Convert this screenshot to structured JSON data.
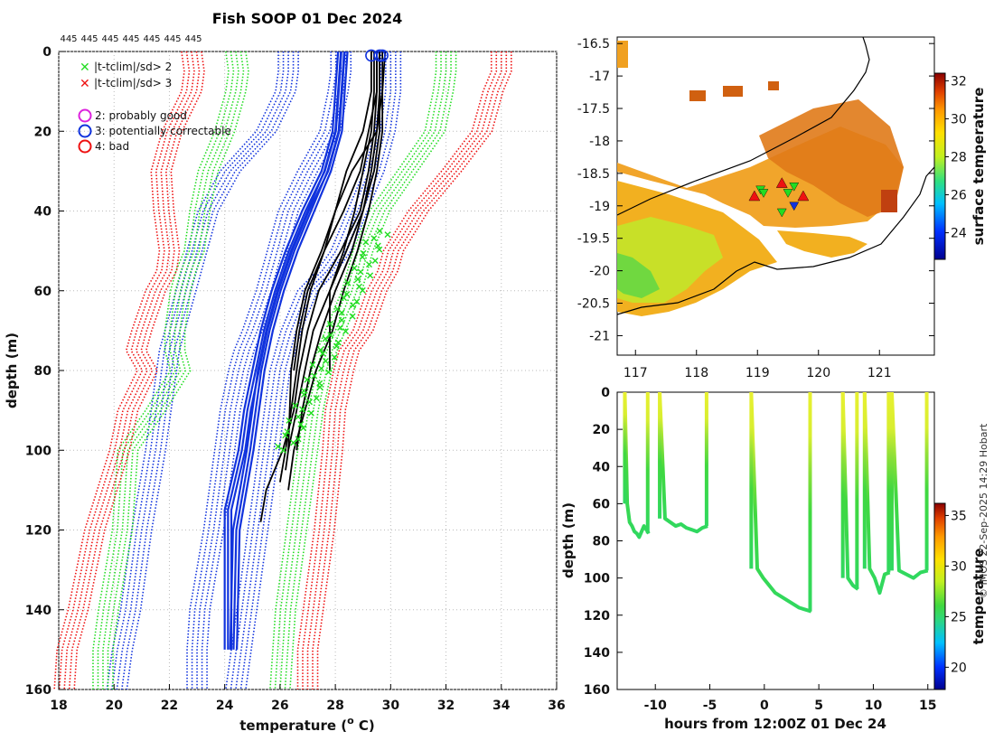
{
  "figure": {
    "title": "Fish SOOP 01 Dec 2024",
    "credit": "© IMOS 22-Sep-2025 14:29 Hobart"
  },
  "chart_data": [
    {
      "type": "line",
      "panel": "profiles",
      "top_labels": [
        "445",
        "445",
        "445",
        "445",
        "445",
        "445",
        "445"
      ],
      "xlabel": "temperature (o C)",
      "xlabel_main": "temperature (",
      "xlabel_sup": "o",
      "xlabel_end": " C)",
      "ylabel": "depth (m)",
      "xlim": [
        18,
        36
      ],
      "ylim": [
        0,
        160
      ],
      "y_reversed": true,
      "xticks": [
        18,
        20,
        22,
        24,
        26,
        28,
        30,
        32,
        34,
        36
      ],
      "yticks": [
        0,
        20,
        40,
        60,
        80,
        100,
        120,
        140,
        160
      ],
      "legend": [
        {
          "marker": "x",
          "color": "#22dd22",
          "label": "|t-tclim|/sd> 2"
        },
        {
          "marker": "x",
          "color": "#ee1111",
          "label": "|t-tclim|/sd> 3"
        },
        {
          "marker": "o",
          "color": "#dd22dd",
          "label": "2: probably good"
        },
        {
          "marker": "o",
          "color": "#1133dd",
          "label": "3: potentially correctable"
        },
        {
          "marker": "o",
          "color": "#ee1111",
          "label": "4: bad"
        }
      ],
      "depths": [
        0,
        5,
        10,
        20,
        30,
        40,
        50,
        55,
        60,
        70,
        75,
        80,
        90,
        100,
        120,
        140,
        150,
        160
      ],
      "climatology": [
        {
          "name": "clim mean",
          "color": "#1133dd",
          "values": [
            28.2,
            28.2,
            28.1,
            27.8,
            27.0,
            26.3,
            25.9,
            25.7,
            25.5,
            25.0,
            24.7,
            24.5,
            24.2,
            24.0,
            23.6,
            23.1,
            23.0,
            23.0
          ]
        },
        {
          "name": "clim mean -2sd",
          "color": "#1133dd",
          "values": [
            26.3,
            26.3,
            26.2,
            25.5,
            24.2,
            23.4,
            23.0,
            22.8,
            22.6,
            22.2,
            22.0,
            21.9,
            21.7,
            21.5,
            21.0,
            20.6,
            20.3,
            20.1
          ]
        },
        {
          "name": "clim mean +2sd",
          "color": "#1133dd",
          "values": [
            30.0,
            30.0,
            30.0,
            29.8,
            29.4,
            28.8,
            28.2,
            27.7,
            27.0,
            26.4,
            26.2,
            26.0,
            25.8,
            25.6,
            25.2,
            24.8,
            24.6,
            24.4
          ]
        },
        {
          "name": "clim +2sd (green)",
          "color": "#22dd22",
          "values": [
            24.4,
            24.5,
            24.4,
            24.0,
            23.4,
            23.1,
            22.9,
            22.6,
            22.4,
            22.2,
            22.2,
            22.4,
            21.5,
            20.5,
            20.3,
            19.8,
            19.6,
            19.6
          ]
        },
        {
          "name": "clim -2sd (green)",
          "color": "#22dd22",
          "values": [
            32.0,
            32.0,
            31.9,
            31.6,
            30.6,
            29.6,
            29.0,
            28.8,
            28.6,
            28.0,
            27.7,
            27.5,
            27.2,
            27.0,
            26.6,
            26.2,
            26.1,
            26.0
          ]
        },
        {
          "name": "clim -3sd (red)",
          "color": "#ee1111",
          "values": [
            22.8,
            22.9,
            22.8,
            22.1,
            21.7,
            21.8,
            22.0,
            21.9,
            21.5,
            21.0,
            20.8,
            21.2,
            20.5,
            20.2,
            19.3,
            18.7,
            18.3,
            18.2
          ]
        },
        {
          "name": "clim +3sd (red)",
          "color": "#ee1111",
          "values": [
            34.0,
            34.0,
            33.7,
            33.3,
            32.2,
            31.0,
            30.1,
            29.9,
            29.5,
            29.0,
            28.5,
            28.3,
            28.0,
            27.9,
            27.6,
            27.2,
            27.0,
            27.0
          ]
        }
      ],
      "profiles_black": [
        {
          "depth": [
            0,
            10,
            20,
            30,
            40,
            50,
            60,
            70,
            80,
            90,
            100,
            110,
            118
          ],
          "temp": [
            29.5,
            29.5,
            29.4,
            29.2,
            28.9,
            28.2,
            27.4,
            27.0,
            26.7,
            26.5,
            26.1,
            25.5,
            25.3
          ]
        },
        {
          "depth": [
            0,
            10,
            20,
            30,
            40,
            50,
            60,
            70,
            80,
            90,
            100,
            108
          ],
          "temp": [
            29.6,
            29.6,
            29.5,
            28.6,
            28.0,
            27.6,
            27.1,
            26.8,
            26.6,
            26.4,
            26.2,
            26.0
          ]
        },
        {
          "depth": [
            0,
            10,
            20,
            30,
            40,
            50,
            60,
            70,
            80,
            90,
            100,
            105
          ],
          "temp": [
            29.4,
            29.4,
            29.3,
            29.0,
            28.7,
            28.3,
            27.8,
            27.2,
            26.9,
            26.6,
            26.3,
            26.2
          ]
        },
        {
          "depth": [
            0,
            10,
            20,
            30,
            40,
            50,
            60,
            70,
            80,
            90,
            100
          ],
          "temp": [
            29.7,
            29.7,
            29.5,
            29.3,
            29.0,
            28.6,
            28.0,
            27.5,
            27.1,
            26.8,
            26.6
          ]
        },
        {
          "depth": [
            0,
            10,
            20,
            30,
            40,
            50,
            60,
            70,
            80
          ],
          "temp": [
            29.5,
            29.5,
            29.2,
            28.9,
            28.3,
            27.6,
            27.0,
            26.7,
            26.5
          ]
        },
        {
          "depth": [
            0,
            10,
            20,
            30,
            40,
            50,
            60,
            75,
            80
          ],
          "temp": [
            29.6,
            29.6,
            29.6,
            29.4,
            29.0,
            28.4,
            27.8,
            27.8,
            27.8
          ]
        },
        {
          "depth": [
            0,
            10,
            20,
            30,
            40,
            50,
            60,
            70,
            80,
            100
          ],
          "temp": [
            29.3,
            29.3,
            29.0,
            28.4,
            28.0,
            27.5,
            26.9,
            26.6,
            26.4,
            26.3
          ]
        },
        {
          "depth": [
            0,
            10,
            20,
            30,
            40,
            50,
            60,
            70,
            80,
            100,
            110
          ],
          "temp": [
            29.8,
            29.7,
            29.7,
            29.5,
            29.2,
            28.8,
            28.3,
            27.9,
            27.3,
            26.5,
            26.3
          ]
        }
      ],
      "profiles_blue": [
        {
          "depth": [
            0,
            10,
            20,
            30,
            40,
            50,
            60,
            70,
            80,
            90,
            100,
            120,
            150
          ],
          "temp": [
            28.2,
            28.1,
            28.0,
            27.6,
            27.0,
            26.4,
            25.9,
            25.5,
            25.2,
            25.0,
            24.8,
            24.3,
            24.2
          ]
        },
        {
          "depth": [
            0,
            10,
            20,
            30,
            40,
            50,
            60,
            70,
            80,
            90,
            100,
            115,
            150
          ],
          "temp": [
            28.1,
            28.0,
            27.9,
            27.5,
            26.8,
            26.2,
            25.7,
            25.3,
            25.0,
            24.7,
            24.5,
            24.0,
            24.0
          ]
        }
      ],
      "flag_markers": [
        {
          "type": "o",
          "color": "#1133dd",
          "x": 29.3,
          "y": 1
        },
        {
          "type": "o",
          "color": "#1133dd",
          "x": 29.7,
          "y": 1
        },
        {
          "type": "o",
          "color": "#1133dd",
          "x": 29.6,
          "y": 1
        }
      ],
      "green_x_range": {
        "depth": [
          45,
          100
        ],
        "temp": [
          26.2,
          29.6
        ]
      }
    },
    {
      "type": "heatmap",
      "panel": "map",
      "xticks": [
        117,
        118,
        119,
        120,
        121
      ],
      "yticks": [
        -16.5,
        -17,
        -17.5,
        -18,
        -18.5,
        -19,
        -19.5,
        -20,
        -20.5,
        -21
      ],
      "xlim": [
        116.7,
        121.9
      ],
      "ylim": [
        -21.3,
        -16.4
      ],
      "colorbar_label": "surface temperature",
      "colorbar_ticks": [
        24,
        26,
        28,
        30,
        32
      ],
      "colorbar_range": [
        22.6,
        32.4
      ],
      "markers": [
        {
          "type": "triangle",
          "color": "#ee1111",
          "lon": 118.95,
          "lat": -18.85
        },
        {
          "type": "triangle",
          "color": "#ee1111",
          "lon": 119.4,
          "lat": -18.65
        },
        {
          "type": "triangle",
          "color": "#ee1111",
          "lon": 119.75,
          "lat": -18.85
        },
        {
          "type": "triangle-down",
          "color": "#22dd22",
          "lon": 119.05,
          "lat": -18.75
        },
        {
          "type": "triangle-down",
          "color": "#22dd22",
          "lon": 119.1,
          "lat": -18.8
        },
        {
          "type": "triangle-down",
          "color": "#22dd22",
          "lon": 119.4,
          "lat": -19.1
        },
        {
          "type": "triangle-down",
          "color": "#22dd22",
          "lon": 119.6,
          "lat": -18.7
        },
        {
          "type": "triangle-down",
          "color": "#1133dd",
          "lon": 119.6,
          "lat": -19.0
        },
        {
          "type": "triangle-down",
          "color": "#22dd22",
          "lon": 119.5,
          "lat": -18.8
        }
      ]
    },
    {
      "type": "scatter",
      "panel": "timeseries",
      "xlabel": "hours from 12:00Z 01 Dec 24",
      "ylabel": "depth (m)",
      "xticks": [
        -10,
        -5,
        0,
        5,
        10,
        15
      ],
      "yticks": [
        0,
        20,
        40,
        60,
        80,
        100,
        120,
        140,
        160
      ],
      "xlim": [
        -13.5,
        15.6
      ],
      "ylim": [
        0,
        160
      ],
      "y_reversed": true,
      "colorbar_label": "temperature",
      "colorbar_ticks": [
        20,
        25,
        30,
        35
      ],
      "colorbar_range": [
        17.8,
        36.2
      ],
      "dives": [
        {
          "start": -12.8,
          "end": -10.6,
          "depth": [
            0,
            60,
            70,
            72,
            75,
            76,
            78,
            75,
            72,
            74,
            76
          ],
          "up": [
            -10.7,
            -10.6
          ]
        },
        {
          "start": -9.6,
          "end": -5.2,
          "depth": [
            0,
            68,
            70,
            72,
            71,
            73,
            74,
            75,
            73,
            72
          ],
          "up": [
            -5.3,
            -5.2
          ]
        },
        {
          "start": -1.2,
          "end": 4.3,
          "depth": [
            0,
            95,
            100,
            104,
            108,
            110,
            112,
            114,
            116,
            117,
            118
          ],
          "up": [
            4.2,
            4.3
          ]
        },
        {
          "start": 7.2,
          "end": 8.6,
          "depth": [
            0,
            100,
            104,
            106
          ],
          "up": [
            8.5,
            8.6
          ]
        },
        {
          "start": 9.2,
          "end": 11.5,
          "depth": [
            0,
            95,
            100,
            108,
            98,
            97
          ],
          "up": [
            11.4,
            11.5
          ]
        },
        {
          "start": 11.7,
          "end": 15.0,
          "depth": [
            0,
            96,
            98,
            100,
            97,
            96
          ],
          "up": [
            14.9,
            15.0
          ]
        }
      ]
    }
  ]
}
